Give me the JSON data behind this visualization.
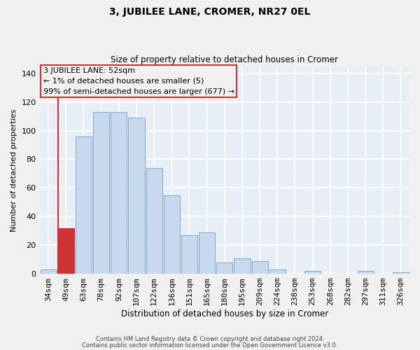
{
  "title": "3, JUBILEE LANE, CROMER, NR27 0EL",
  "subtitle": "Size of property relative to detached houses in Cromer",
  "xlabel": "Distribution of detached houses by size in Cromer",
  "ylabel": "Number of detached properties",
  "bar_labels": [
    "34sqm",
    "49sqm",
    "63sqm",
    "78sqm",
    "92sqm",
    "107sqm",
    "122sqm",
    "136sqm",
    "151sqm",
    "165sqm",
    "180sqm",
    "195sqm",
    "209sqm",
    "224sqm",
    "238sqm",
    "253sqm",
    "268sqm",
    "282sqm",
    "297sqm",
    "311sqm",
    "326sqm"
  ],
  "bar_values": [
    3,
    32,
    96,
    113,
    113,
    109,
    74,
    55,
    27,
    29,
    8,
    11,
    9,
    3,
    0,
    2,
    0,
    0,
    2,
    0,
    1
  ],
  "highlight_index": 1,
  "bar_color": "#c8d9ee",
  "bar_edge_color": "#7fa8cc",
  "highlight_bar_color": "#cc3333",
  "ylim": [
    0,
    145
  ],
  "yticks": [
    0,
    20,
    40,
    60,
    80,
    100,
    120,
    140
  ],
  "annotation_title": "3 JUBILEE LANE: 52sqm",
  "annotation_line1": "← 1% of detached houses are smaller (5)",
  "annotation_line2": "99% of semi-detached houses are larger (677) →",
  "footer_line1": "Contains HM Land Registry data © Crown copyright and database right 2024.",
  "footer_line2": "Contains public sector information licensed under the Open Government Licence v3.0.",
  "fig_width": 6.0,
  "fig_height": 5.0,
  "dpi": 100,
  "background_color": "#f0f0f0",
  "plot_bg_color": "#e8eef5"
}
